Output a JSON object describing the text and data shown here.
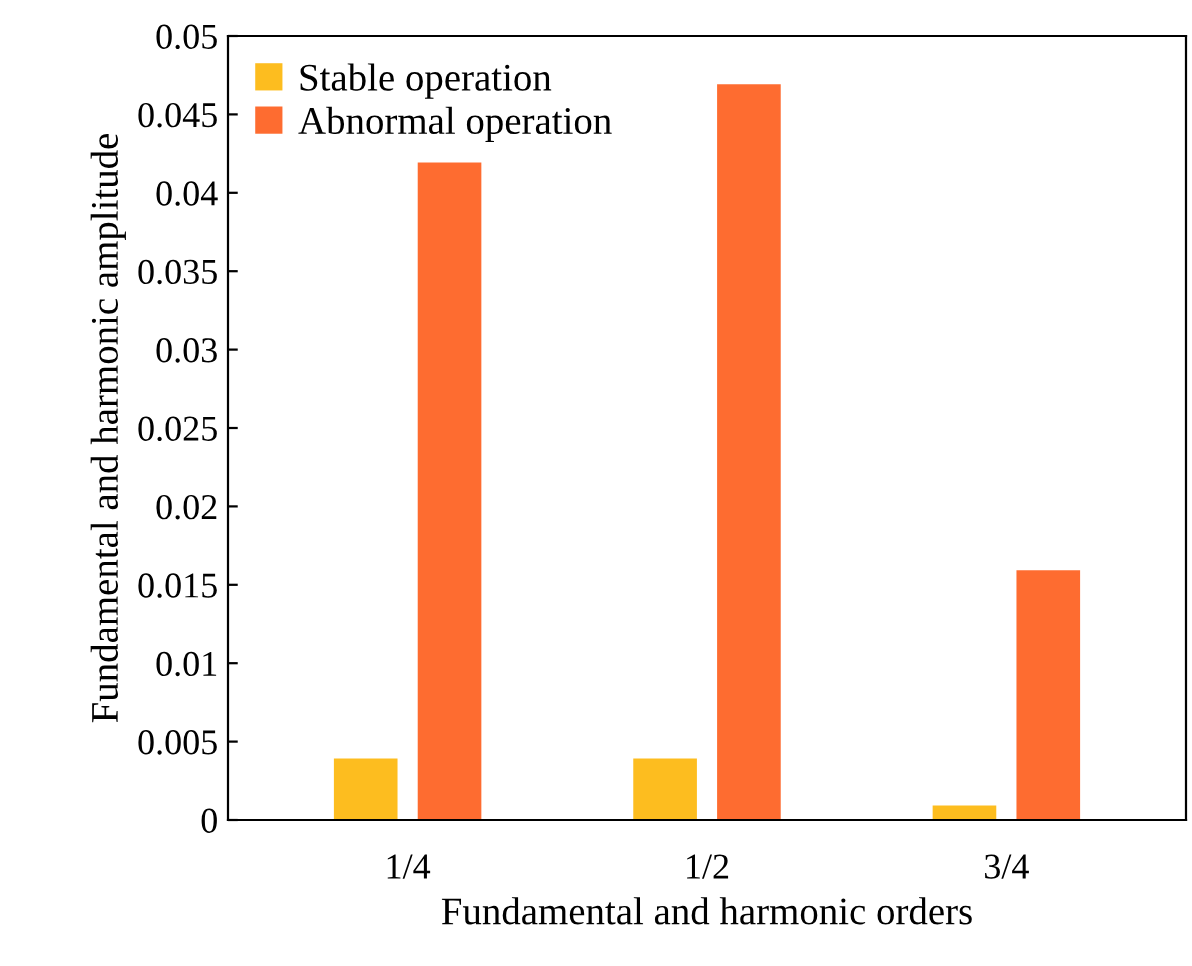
{
  "chart_data": {
    "type": "bar",
    "xlabel": "Fundamental and harmonic orders",
    "ylabel": "Fundamental and harmonic amplitude",
    "categories": [
      "1/4",
      "1/2",
      "3/4"
    ],
    "series": [
      {
        "name": "Stable operation",
        "color": "#fdbd1f",
        "values": [
          0.004,
          0.004,
          0.001
        ]
      },
      {
        "name": "Abnormal operation",
        "color": "#fe6c30",
        "values": [
          0.042,
          0.047,
          0.016
        ]
      }
    ],
    "ylim": [
      0,
      0.05
    ],
    "yticks": [
      0,
      0.005,
      0.01,
      0.015,
      0.02,
      0.025,
      0.03,
      0.035,
      0.04,
      0.045,
      0.05
    ],
    "grid": false,
    "legend": "top left"
  }
}
